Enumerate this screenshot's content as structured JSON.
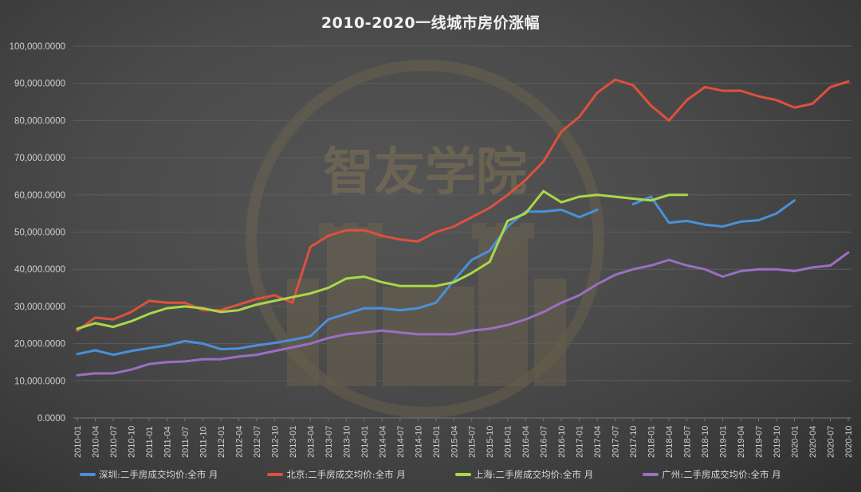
{
  "title": "2010-2020一线城市房价涨幅",
  "watermark": "智友学院",
  "legend": [
    {
      "label": "深圳:二手房成交均价:全市 月",
      "color": "#4a90d9"
    },
    {
      "label": "北京:二手房成交均价:全市 月",
      "color": "#e0503c"
    },
    {
      "label": "上海:二手房成交均价:全市 月",
      "color": "#a8d84a"
    },
    {
      "label": "广州:二手房成交均价:全市 月",
      "color": "#9b6fc4"
    }
  ],
  "chart_data": {
    "type": "line",
    "title": "2010-2020一线城市房价涨幅",
    "xlabel": "",
    "ylabel": "",
    "ylim": [
      0,
      100000
    ],
    "yticks": [
      "0.0000",
      "10,000.0000",
      "20,000.0000",
      "30,000.0000",
      "40,000.0000",
      "50,000.0000",
      "60,000.0000",
      "70,000.0000",
      "80,000.0000",
      "90,000.0000",
      "100,000.0000"
    ],
    "grid": true,
    "legend_position": "bottom",
    "x": [
      "2010-01",
      "2010-04",
      "2010-07",
      "2010-10",
      "2011-01",
      "2011-04",
      "2011-07",
      "2011-10",
      "2012-01",
      "2012-04",
      "2012-07",
      "2012-10",
      "2013-01",
      "2013-04",
      "2013-07",
      "2013-10",
      "2014-01",
      "2014-04",
      "2014-07",
      "2014-10",
      "2015-01",
      "2015-04",
      "2015-07",
      "2015-10",
      "2016-01",
      "2016-04",
      "2016-07",
      "2016-10",
      "2017-01",
      "2017-04",
      "2017-07",
      "2017-10",
      "2018-01",
      "2018-04",
      "2018-07",
      "2018-10",
      "2019-01",
      "2019-04",
      "2019-07",
      "2019-10",
      "2020-01",
      "2020-04",
      "2020-07",
      "2020-10"
    ],
    "series": [
      {
        "name": "深圳:二手房成交均价:全市 月",
        "color": "#4a90d9",
        "values": [
          17200,
          18200,
          17000,
          18000,
          18800,
          19500,
          20700,
          20000,
          18500,
          18700,
          19500,
          20200,
          21000,
          22000,
          26500,
          28000,
          29500,
          29500,
          29000,
          29500,
          31000,
          37000,
          42500,
          45000,
          51500,
          55500,
          55500,
          56000,
          54000,
          56000,
          null,
          57500,
          59500,
          52500,
          53000,
          52000,
          51500,
          52800,
          53200,
          55000,
          58500,
          null,
          null,
          null
        ]
      },
      {
        "name": "北京:二手房成交均价:全市 月",
        "color": "#e0503c",
        "values": [
          23500,
          27000,
          26500,
          28500,
          31500,
          31000,
          31000,
          29000,
          29000,
          30500,
          32000,
          33000,
          31000,
          46000,
          49000,
          50500,
          50500,
          49000,
          48000,
          47500,
          50000,
          51500,
          54000,
          56500,
          60000,
          64000,
          69000,
          77000,
          81000,
          87500,
          91000,
          89500,
          84000,
          80000,
          85500,
          89000,
          88000,
          88000,
          86500,
          85500,
          83500,
          84500,
          89000,
          90500
        ]
      },
      {
        "name": "上海:二手房成交均价:全市 月",
        "color": "#a8d84a",
        "values": [
          24000,
          25500,
          24500,
          26000,
          28000,
          29500,
          30000,
          29500,
          28500,
          29000,
          30500,
          31500,
          32500,
          33500,
          35000,
          37500,
          38000,
          36500,
          35500,
          35500,
          35500,
          36500,
          39000,
          42000,
          53000,
          55000,
          61000,
          58000,
          59500,
          60000,
          59500,
          59000,
          58500,
          60000,
          60000,
          null,
          null,
          null,
          null,
          null,
          null,
          null,
          null,
          null
        ]
      },
      {
        "name": "广州:二手房成交均价:全市 月",
        "color": "#9b6fc4",
        "values": [
          11500,
          12000,
          12000,
          13000,
          14500,
          15000,
          15200,
          15800,
          15800,
          16500,
          17000,
          18000,
          19000,
          20000,
          21500,
          22500,
          23000,
          23500,
          23000,
          22500,
          22500,
          22500,
          23500,
          24000,
          25000,
          26500,
          28500,
          31000,
          33000,
          36000,
          38500,
          40000,
          41000,
          42500,
          41000,
          40000,
          38000,
          39500,
          40000,
          40000,
          39500,
          40500,
          41000,
          44500
        ]
      }
    ]
  }
}
